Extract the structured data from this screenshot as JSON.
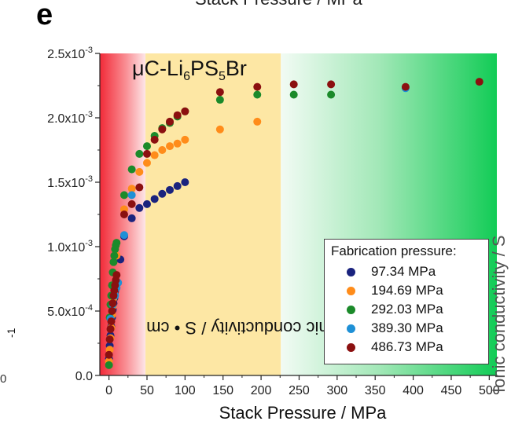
{
  "panel_label": "e",
  "top_cut_text": "Stack Pressure / MPa",
  "left_cut_text": "0",
  "right_cut_text": "Ionic conductivity / S • cm",
  "material_label": {
    "prefix": "μC-Li",
    "sub1": "6",
    "mid1": "PS",
    "sub2": "5",
    "suffix": "Br"
  },
  "colors": {
    "region_red": "#f4333f",
    "region_yellow": "#fde7a4",
    "region_green": "#12cc56"
  },
  "chart_data": {
    "type": "scatter",
    "title": "",
    "xlabel": "Stack Pressure / MPa",
    "ylabel": "Ionic conductivity / S • cm",
    "ylabel_sup": "-1",
    "xlim": [
      -12,
      510
    ],
    "ylim": [
      0,
      0.0025
    ],
    "x_ticks": [
      0,
      50,
      100,
      150,
      200,
      250,
      300,
      350,
      400,
      450,
      500
    ],
    "x_tick_labels": [
      "0",
      "50",
      "100",
      "150",
      "200",
      "250",
      "300",
      "350",
      "400",
      "450",
      "500"
    ],
    "y_ticks": [
      0,
      0.0005,
      0.001,
      0.0015,
      0.002,
      0.0025
    ],
    "y_tick_labels": [
      {
        "base": "0.0",
        "exp": ""
      },
      {
        "base": "5.0x10",
        "exp": "-4"
      },
      {
        "base": "1.0x10",
        "exp": "-3"
      },
      {
        "base": "1.5x10",
        "exp": "-3"
      },
      {
        "base": "2.0x10",
        "exp": "-3"
      },
      {
        "base": "2.5x10",
        "exp": "-3"
      }
    ],
    "regions": [
      {
        "x0": -12,
        "x1": 48,
        "style": "red"
      },
      {
        "x0": 48,
        "x1": 226,
        "style": "yellow"
      },
      {
        "x0": 226,
        "x1": 510,
        "style": "green"
      }
    ],
    "legend": {
      "title": "Fabrication pressure:",
      "position": "bottom-right"
    },
    "series": [
      {
        "name": "97.34 MPa",
        "color": "#1a237e",
        "points": [
          [
            0,
            0.00013
          ],
          [
            1,
            0.00023
          ],
          [
            2,
            0.00031
          ],
          [
            3,
            0.00038
          ],
          [
            4,
            0.00045
          ],
          [
            5,
            0.00051
          ],
          [
            6,
            0.00056
          ],
          [
            7,
            0.0006
          ],
          [
            8,
            0.00065
          ],
          [
            9,
            0.00068
          ],
          [
            10,
            0.00071
          ],
          [
            15,
            0.0009
          ],
          [
            20,
            0.00108
          ],
          [
            30,
            0.00122
          ],
          [
            40,
            0.0013
          ],
          [
            50,
            0.00133
          ],
          [
            60,
            0.00137
          ],
          [
            70,
            0.00141
          ],
          [
            80,
            0.00144
          ],
          [
            90,
            0.00147
          ],
          [
            100,
            0.0015
          ]
        ]
      },
      {
        "name": "194.69 MPa",
        "color": "#ff8c1a",
        "points": [
          [
            0,
            0.00011
          ],
          [
            1,
            0.0002
          ],
          [
            2,
            0.00029
          ],
          [
            3,
            0.00037
          ],
          [
            4,
            0.00047
          ],
          [
            5,
            0.00054
          ],
          [
            6,
            0.0006
          ],
          [
            7,
            0.00064
          ],
          [
            8,
            0.00068
          ],
          [
            9,
            0.00072
          ],
          [
            10,
            0.00093
          ],
          [
            20,
            0.00129
          ],
          [
            30,
            0.00145
          ],
          [
            40,
            0.00158
          ],
          [
            50,
            0.00165
          ],
          [
            60,
            0.00171
          ],
          [
            70,
            0.00175
          ],
          [
            80,
            0.00178
          ],
          [
            90,
            0.0018
          ],
          [
            100,
            0.00183
          ],
          [
            146,
            0.00191
          ],
          [
            195,
            0.00197
          ]
        ]
      },
      {
        "name": "292.03 MPa",
        "color": "#1b8a2a",
        "points": [
          [
            0,
            8e-05
          ],
          [
            1,
            0.00045
          ],
          [
            2,
            0.00055
          ],
          [
            3,
            0.00062
          ],
          [
            4,
            0.0007
          ],
          [
            5,
            0.0008
          ],
          [
            6,
            0.00088
          ],
          [
            7,
            0.00093
          ],
          [
            8,
            0.00098
          ],
          [
            9,
            0.00101
          ],
          [
            10,
            0.00103
          ],
          [
            20,
            0.0014
          ],
          [
            30,
            0.0016
          ],
          [
            40,
            0.00172
          ],
          [
            50,
            0.00178
          ],
          [
            60,
            0.00186
          ],
          [
            70,
            0.00192
          ],
          [
            80,
            0.00196
          ],
          [
            90,
            0.00201
          ],
          [
            100,
            0.00205
          ],
          [
            146,
            0.00214
          ],
          [
            195,
            0.00218
          ],
          [
            243,
            0.00218
          ],
          [
            292,
            0.00218
          ]
        ]
      },
      {
        "name": "389.30 MPa",
        "color": "#1e90d6",
        "points": [
          [
            2,
            0.00044
          ],
          [
            5,
            0.00055
          ],
          [
            8,
            0.00062
          ],
          [
            10,
            0.00068
          ],
          [
            12,
            0.00072
          ],
          [
            20,
            0.00109
          ],
          [
            30,
            0.0014
          ],
          [
            390,
            0.00223
          ]
        ]
      },
      {
        "name": "486.73 MPa",
        "color": "#8b1010",
        "points": [
          [
            0,
            0.00016
          ],
          [
            1,
            0.00028
          ],
          [
            2,
            0.00036
          ],
          [
            3,
            0.00042
          ],
          [
            4,
            0.0005
          ],
          [
            5,
            0.00056
          ],
          [
            6,
            0.00062
          ],
          [
            7,
            0.00066
          ],
          [
            8,
            0.0007
          ],
          [
            9,
            0.00074
          ],
          [
            10,
            0.00078
          ],
          [
            20,
            0.00125
          ],
          [
            30,
            0.00133
          ],
          [
            40,
            0.00146
          ],
          [
            50,
            0.00172
          ],
          [
            60,
            0.00183
          ],
          [
            70,
            0.00191
          ],
          [
            80,
            0.00197
          ],
          [
            90,
            0.00202
          ],
          [
            100,
            0.00205
          ],
          [
            146,
            0.0022
          ],
          [
            195,
            0.00224
          ],
          [
            243,
            0.00226
          ],
          [
            292,
            0.00226
          ],
          [
            390,
            0.00224
          ],
          [
            487,
            0.00228
          ]
        ]
      }
    ]
  }
}
